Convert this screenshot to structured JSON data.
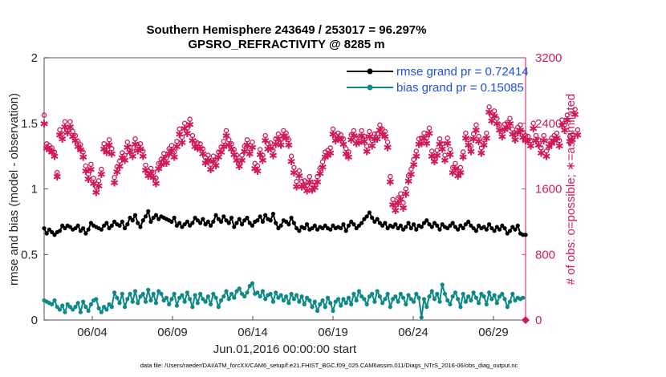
{
  "chart_data": {
    "type": "line",
    "title_line1": "Southern Hemisphere 243649 / 253017 = 96.297%",
    "title_line2": "GPSRO_REFRACTIVITY @ 8285 m",
    "xlabel": "Jun.01,2016 00:00:00 start",
    "ylabel_left": "rmse and bias (model - observation)",
    "ylabel_right": "# of obs: o=possible; ∗=assimilated",
    "ylim_left": [
      0,
      2
    ],
    "ylim_right": [
      0,
      3200
    ],
    "xlim": [
      1,
      31
    ],
    "yticks_left": [
      "0",
      "0.5",
      "1",
      "1.5",
      "2"
    ],
    "yticks_right": [
      "0",
      "800",
      "1600",
      "2400",
      "3200"
    ],
    "xticks": [
      {
        "day": 4,
        "label": "06/04"
      },
      {
        "day": 9,
        "label": "06/09"
      },
      {
        "day": 14,
        "label": "06/14"
      },
      {
        "day": 19,
        "label": "06/19"
      },
      {
        "day": 24,
        "label": "06/24"
      },
      {
        "day": 29,
        "label": "06/29"
      }
    ],
    "legend_position": "top-right",
    "footnote": "data file: /Users/raeder/DAI/ATM_forcXX/CAM6_setup/f.e21.FHIST_BGC.f09_025.CAM6assim.011/Diags_NTrS_2016-06/obs_diag_output.nc",
    "series": [
      {
        "name": "rmse grand pr = 0.72414",
        "axis": "left",
        "color": "#000000",
        "values": [
          0.7,
          0.66,
          0.69,
          0.67,
          0.65,
          0.67,
          0.68,
          0.72,
          0.7,
          0.72,
          0.71,
          0.69,
          0.7,
          0.72,
          0.68,
          0.7,
          0.66,
          0.69,
          0.74,
          0.72,
          0.71,
          0.7,
          0.69,
          0.72,
          0.74,
          0.7,
          0.72,
          0.75,
          0.73,
          0.72,
          0.75,
          0.7,
          0.73,
          0.78,
          0.76,
          0.8,
          0.74,
          0.71,
          0.76,
          0.79,
          0.83,
          0.75,
          0.78,
          0.8,
          0.77,
          0.79,
          0.78,
          0.77,
          0.76,
          0.75,
          0.78,
          0.72,
          0.74,
          0.71,
          0.73,
          0.75,
          0.72,
          0.74,
          0.78,
          0.76,
          0.74,
          0.77,
          0.73,
          0.75,
          0.72,
          0.75,
          0.8,
          0.77,
          0.75,
          0.79,
          0.76,
          0.74,
          0.78,
          0.71,
          0.74,
          0.77,
          0.73,
          0.76,
          0.78,
          0.74,
          0.72,
          0.75,
          0.76,
          0.79,
          0.75,
          0.8,
          0.77,
          0.76,
          0.81,
          0.74,
          0.7,
          0.72,
          0.76,
          0.75,
          0.73,
          0.78,
          0.74,
          0.7,
          0.68,
          0.71,
          0.7,
          0.73,
          0.69,
          0.7,
          0.72,
          0.69,
          0.71,
          0.7,
          0.72,
          0.7,
          0.69,
          0.72,
          0.7,
          0.71,
          0.7,
          0.73,
          0.68,
          0.72,
          0.75,
          0.73,
          0.7,
          0.72,
          0.74,
          0.77,
          0.79,
          0.82,
          0.78,
          0.75,
          0.77,
          0.74,
          0.72,
          0.74,
          0.7,
          0.72,
          0.71,
          0.73,
          0.7,
          0.72,
          0.69,
          0.71,
          0.74,
          0.7,
          0.73,
          0.69,
          0.72,
          0.71,
          0.74,
          0.76,
          0.73,
          0.71,
          0.74,
          0.72,
          0.69,
          0.73,
          0.71,
          0.7,
          0.72,
          0.74,
          0.71,
          0.69,
          0.72,
          0.7,
          0.73,
          0.75,
          0.72,
          0.7,
          0.68,
          0.72,
          0.7,
          0.71,
          0.69,
          0.73,
          0.7,
          0.68,
          0.71,
          0.69,
          0.72,
          0.7,
          0.66,
          0.68,
          0.71,
          0.69,
          0.72,
          0.66,
          0.65,
          0.65
        ]
      },
      {
        "name": "bias grand pr = 0.15085",
        "axis": "left",
        "color": "#0e8a86",
        "values": [
          0.15,
          0.14,
          0.13,
          0.12,
          0.15,
          0.1,
          0.08,
          0.11,
          0.06,
          0.12,
          0.1,
          0.08,
          0.1,
          0.13,
          0.06,
          0.14,
          0.1,
          0.07,
          0.12,
          0.15,
          0.16,
          0.09,
          0.06,
          0.1,
          0.08,
          0.12,
          0.1,
          0.21,
          0.17,
          0.13,
          0.2,
          0.1,
          0.16,
          0.2,
          0.14,
          0.22,
          0.13,
          0.18,
          0.2,
          0.14,
          0.23,
          0.15,
          0.2,
          0.13,
          0.22,
          0.2,
          0.15,
          0.17,
          0.12,
          0.16,
          0.2,
          0.11,
          0.17,
          0.19,
          0.14,
          0.21,
          0.16,
          0.1,
          0.19,
          0.13,
          0.2,
          0.16,
          0.14,
          0.18,
          0.12,
          0.2,
          0.17,
          0.1,
          0.15,
          0.18,
          0.22,
          0.16,
          0.2,
          0.17,
          0.22,
          0.24,
          0.2,
          0.18,
          0.21,
          0.26,
          0.28,
          0.2,
          0.21,
          0.18,
          0.22,
          0.16,
          0.19,
          0.2,
          0.14,
          0.21,
          0.17,
          0.19,
          0.15,
          0.18,
          0.13,
          0.2,
          0.16,
          0.19,
          0.14,
          0.18,
          0.12,
          0.17,
          0.15,
          0.1,
          0.14,
          0.07,
          0.12,
          0.15,
          0.1,
          0.17,
          0.13,
          0.07,
          0.14,
          0.16,
          0.11,
          0.16,
          0.13,
          0.17,
          0.12,
          0.2,
          0.15,
          0.22,
          0.18,
          0.16,
          0.12,
          0.18,
          0.2,
          0.14,
          0.22,
          0.18,
          0.13,
          0.16,
          0.2,
          0.1,
          0.16,
          0.18,
          0.14,
          0.2,
          0.17,
          0.12,
          0.19,
          0.16,
          0.14,
          0.2,
          0.17,
          0.02,
          0.16,
          0.1,
          0.18,
          0.22,
          0.16,
          0.2,
          0.14,
          0.27,
          0.2,
          0.15,
          0.12,
          0.18,
          0.21,
          0.16,
          0.1,
          0.2,
          0.14,
          0.18,
          0.15,
          0.21,
          0.17,
          0.13,
          0.2,
          0.18,
          0.12,
          0.21,
          0.16,
          0.19,
          0.13,
          0.18,
          0.2,
          0.16,
          0.1,
          0.14,
          0.2,
          0.15,
          0.17,
          0.16,
          0.17
        ]
      },
      {
        "name": "possible",
        "axis": "right",
        "marker": "o",
        "color": "#d1195a",
        "values": [
          2500,
          2150,
          2130,
          2100,
          2050,
          1800,
          2320,
          2270,
          2420,
          2350,
          2420,
          2300,
          2250,
          2180,
          2140,
          2050,
          1880,
          1780,
          1900,
          1730,
          1620,
          1700,
          1840,
          2150,
          2110,
          2200,
          2090,
          1740,
          1870,
          1940,
          2040,
          2010,
          2170,
          2110,
          2060,
          2210,
          2130,
          2150,
          2060,
          1890,
          1820,
          1850,
          1800,
          1730,
          1910,
          1960,
          2030,
          1980,
          2090,
          2130,
          2050,
          2180,
          2330,
          2230,
          2400,
          2340,
          2450,
          2250,
          2180,
          2160,
          2150,
          2090,
          1980,
          2010,
          1900,
          2000,
          1950,
          2050,
          2110,
          2180,
          2310,
          2200,
          2150,
          2080,
          2010,
          1940,
          2010,
          2120,
          2200,
          2090,
          2170,
          1910,
          1880,
          2080,
          2010,
          2250,
          2150,
          2160,
          2070,
          2210,
          2270,
          2200,
          2310,
          2280,
          2200,
          2000,
          1860,
          1690,
          1820,
          1690,
          1700,
          1640,
          1750,
          1650,
          1680,
          1750,
          1850,
          1930,
          2050,
          2070,
          2100,
          2330,
          2250,
          2280,
          2260,
          2210,
          2090,
          2050,
          2260,
          2310,
          2220,
          2230,
          2310,
          2240,
          2120,
          2300,
          2190,
          2270,
          2270,
          2380,
          2330,
          2300,
          2170,
          1750,
          1470,
          1400,
          1490,
          1540,
          1430,
          1600,
          1760,
          1840,
          1960,
          2060,
          2210,
          2220,
          2280,
          2220,
          2340,
          2060,
          2000,
          2070,
          2210,
          2150,
          2010,
          2220,
          2080,
          1860,
          1910,
          1820,
          1860,
          2050,
          2280,
          2200,
          2120,
          2270,
          2380,
          2240,
          2100,
          2200,
          2280,
          2600,
          2490,
          2550,
          2460,
          2380,
          2300,
          2390,
          2410,
          2460,
          2330,
          2260,
          2350,
          2380,
          2290,
          2250,
          2240,
          2190,
          2400,
          2250,
          2200,
          2100,
          2250,
          2060,
          2180,
          2220,
          2250,
          2280,
          2190,
          2440,
          2380,
          2500,
          2240,
          2260,
          2570,
          2320
        ]
      },
      {
        "name": "assimilated",
        "axis": "right",
        "marker": "*",
        "color": "#d1195a",
        "values": [
          2400,
          2100,
          2080,
          2050,
          2000,
          1750,
          2260,
          2210,
          2360,
          2290,
          2360,
          2240,
          2190,
          2120,
          2080,
          1990,
          1820,
          1720,
          1840,
          1670,
          1560,
          1640,
          1780,
          2090,
          2050,
          2140,
          2030,
          1680,
          1810,
          1880,
          1980,
          1950,
          2110,
          2050,
          2000,
          2150,
          2070,
          2090,
          2000,
          1830,
          1760,
          1790,
          1740,
          1670,
          1850,
          1900,
          1970,
          1920,
          2030,
          2070,
          1990,
          2120,
          2270,
          2170,
          2340,
          2280,
          2390,
          2190,
          2120,
          2100,
          2090,
          2030,
          1920,
          1950,
          1840,
          1940,
          1890,
          1990,
          2050,
          2120,
          2250,
          2140,
          2090,
          2020,
          1950,
          1880,
          1950,
          2060,
          2140,
          2030,
          2110,
          1850,
          1820,
          2020,
          1950,
          2190,
          2090,
          2100,
          2010,
          2150,
          2210,
          2140,
          2250,
          2220,
          2140,
          1940,
          1800,
          1630,
          1760,
          1630,
          1640,
          1580,
          1690,
          1590,
          1620,
          1690,
          1790,
          1870,
          1990,
          2010,
          2040,
          2270,
          2190,
          2220,
          2200,
          2150,
          2030,
          1990,
          2200,
          2250,
          2160,
          2170,
          2250,
          2180,
          2060,
          2240,
          2130,
          2210,
          2210,
          2320,
          2270,
          2240,
          2110,
          1690,
          1410,
          1340,
          1430,
          1480,
          1370,
          1540,
          1700,
          1780,
          1900,
          2000,
          2150,
          2160,
          2220,
          2160,
          2280,
          2000,
          1940,
          2010,
          2150,
          2090,
          1950,
          2160,
          2020,
          1800,
          1850,
          1760,
          1800,
          1990,
          2220,
          2140,
          2060,
          2210,
          2320,
          2180,
          2040,
          2140,
          2220,
          2540,
          2430,
          2490,
          2400,
          2320,
          2240,
          2330,
          2350,
          2400,
          2270,
          2200,
          2290,
          2320,
          2230,
          2190,
          2180,
          2130,
          2340,
          2190,
          2140,
          2040,
          2190,
          2000,
          2120,
          2160,
          2190,
          2220,
          2130,
          2380,
          2320,
          2440,
          2180,
          2200,
          2510,
          2260
        ]
      }
    ]
  }
}
